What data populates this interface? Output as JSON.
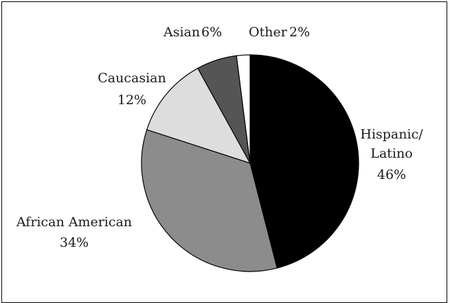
{
  "chart_data": {
    "type": "pie",
    "title": "",
    "slices": [
      {
        "label_lines": [
          "Hispanic/",
          "Latino"
        ],
        "pct_text": "46%",
        "value": 46,
        "color": "#000000"
      },
      {
        "label_lines": [
          "African American"
        ],
        "pct_text": "34%",
        "value": 34,
        "color": "#8c8c8c"
      },
      {
        "label_lines": [
          "Caucasian"
        ],
        "pct_text": "12%",
        "value": 12,
        "color": "#dddddd"
      },
      {
        "label_lines": [
          "Asian"
        ],
        "pct_text": "6%",
        "value": 6,
        "color": "#555555"
      },
      {
        "label_lines": [
          "Other"
        ],
        "pct_text": "2%",
        "value": 2,
        "color": "#ffffff"
      }
    ],
    "start": "12 o'clock",
    "direction": "clockwise",
    "stroke_color": "#000000",
    "legend": "none"
  }
}
